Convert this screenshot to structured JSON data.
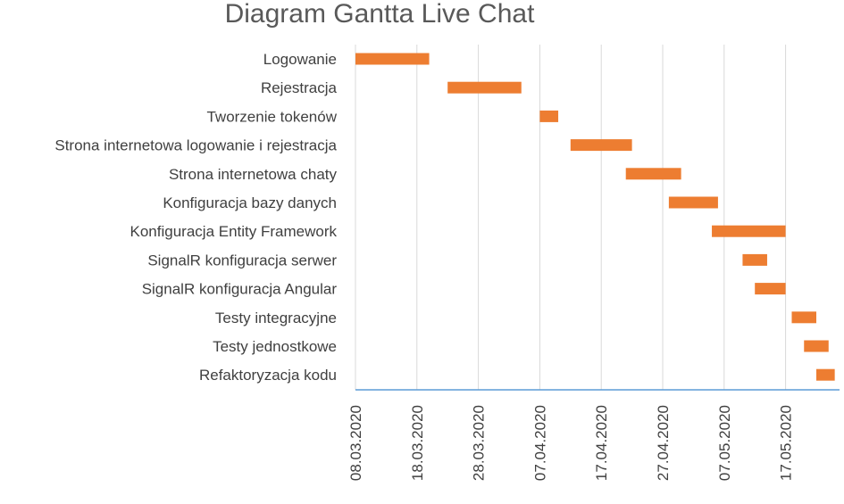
{
  "chart_data": {
    "type": "gantt",
    "title": "Diagram Gantta Live Chat",
    "xlim": [
      "2020-03-08",
      "2020-05-26"
    ],
    "tick_labels": [
      "08.03.2020",
      "18.03.2020",
      "28.03.2020",
      "07.04.2020",
      "17.04.2020",
      "27.04.2020",
      "07.05.2020",
      "17.05.2020"
    ],
    "grid": true,
    "bar_color": "#ED7D31",
    "axis_color": "#5B9BD5",
    "grid_color": "#D9D9D9",
    "tasks": [
      {
        "name": "Logowanie",
        "start": "2020-03-08",
        "end": "2020-03-20"
      },
      {
        "name": "Rejestracja",
        "start": "2020-03-23",
        "end": "2020-04-04"
      },
      {
        "name": "Tworzenie tokenów",
        "start": "2020-04-07",
        "end": "2020-04-10"
      },
      {
        "name": "Strona internetowa logowanie i rejestracja ",
        "start": "2020-04-12",
        "end": "2020-04-22"
      },
      {
        "name": "Strona internetowa chaty",
        "start": "2020-04-21",
        "end": "2020-04-30"
      },
      {
        "name": "Konfiguracja bazy danych",
        "start": "2020-04-28",
        "end": "2020-05-06"
      },
      {
        "name": "Konfiguracja Entity Framework",
        "start": "2020-05-05",
        "end": "2020-05-17"
      },
      {
        "name": "SignalR konfiguracja serwer",
        "start": "2020-05-10",
        "end": "2020-05-14"
      },
      {
        "name": "SignalR konfiguracja Angular",
        "start": "2020-05-12",
        "end": "2020-05-17"
      },
      {
        "name": "Testy integracyjne",
        "start": "2020-05-18",
        "end": "2020-05-22"
      },
      {
        "name": "Testy jednostkowe",
        "start": "2020-05-20",
        "end": "2020-05-24"
      },
      {
        "name": "Refaktoryzacja kodu",
        "start": "2020-05-22",
        "end": "2020-05-25"
      }
    ]
  }
}
